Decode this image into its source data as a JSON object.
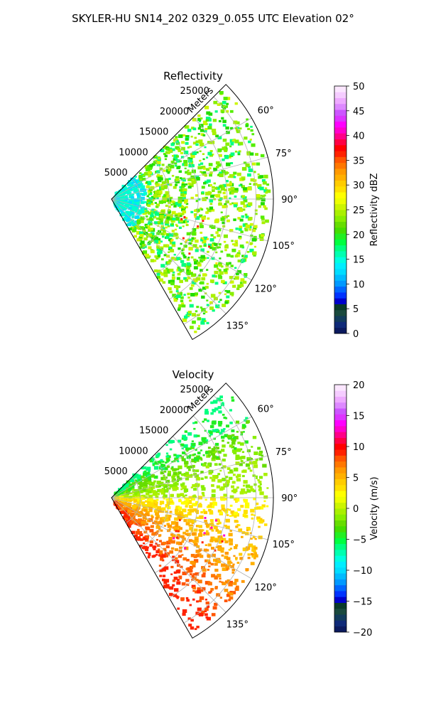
{
  "figure": {
    "title": "SKYLER-HU  SN14_202  0329_0.055 UTC Elevation 02°"
  },
  "chart_data": [
    {
      "type": "heatmap",
      "projection": "polar-sector",
      "title": "Reflectivity",
      "range_axis_label": "Meters",
      "range_ticks": [
        5000,
        10000,
        15000,
        20000,
        25000
      ],
      "range_tick_labels": [
        "5000",
        "10000",
        "15000",
        "20000",
        "25000"
      ],
      "range_lim": [
        0,
        28000
      ],
      "azimuth_ticks": [
        60,
        75,
        90,
        105,
        120,
        135
      ],
      "azimuth_tick_labels": [
        "60°",
        "75°",
        "90°",
        "105°",
        "120°",
        "135°"
      ],
      "azimuth_lim": [
        45,
        150
      ],
      "grid": true,
      "colorbar": {
        "label": "Reflectivity dBZ",
        "range": [
          0,
          50
        ],
        "ticks": [
          0,
          5,
          10,
          15,
          20,
          25,
          30,
          35,
          40,
          45,
          50
        ],
        "tick_labels": [
          "0",
          "5",
          "10",
          "15",
          "20",
          "25",
          "30",
          "35",
          "40",
          "45",
          "50"
        ],
        "levels": 40,
        "colors": [
          "#0b1a5e",
          "#0f2a78",
          "#123c5c",
          "#1a4a3e",
          "#0a3a2a",
          "#0000cc",
          "#0033ff",
          "#0066ff",
          "#0099ff",
          "#00bbff",
          "#00ddff",
          "#00eeff",
          "#00ffe0",
          "#00ffb0",
          "#00ff80",
          "#00ff40",
          "#22ee22",
          "#44dd00",
          "#66dd00",
          "#88ee00",
          "#aaf000",
          "#ccf500",
          "#eeff00",
          "#ffff00",
          "#ffe000",
          "#ffcc00",
          "#ffb000",
          "#ff9900",
          "#ff7700",
          "#ff5500",
          "#ff2200",
          "#ff0000",
          "#ff0044",
          "#ff0088",
          "#ff00cc",
          "#ff00ff",
          "#dd33ff",
          "#cc55ff",
          "#dd88ff",
          "#eeaaff",
          "#f5ccff",
          "#fbe6ff"
        ]
      },
      "field_colors": [
        "#00ffcc",
        "#00ddff",
        "#22dd00",
        "#55ee00",
        "#88ee00",
        "#aaf000",
        "#ccf500",
        "#00ff80"
      ],
      "cell_colors": [
        "#ff2200",
        "#ffe000"
      ]
    },
    {
      "type": "heatmap",
      "projection": "polar-sector",
      "title": "Velocity",
      "range_axis_label": "Meters",
      "range_ticks": [
        5000,
        10000,
        15000,
        20000,
        25000
      ],
      "range_tick_labels": [
        "5000",
        "10000",
        "15000",
        "20000",
        "25000"
      ],
      "range_lim": [
        0,
        28000
      ],
      "azimuth_ticks": [
        60,
        75,
        90,
        105,
        120,
        135
      ],
      "azimuth_tick_labels": [
        "60°",
        "75°",
        "90°",
        "105°",
        "120°",
        "135°"
      ],
      "azimuth_lim": [
        45,
        150
      ],
      "grid": true,
      "colorbar": {
        "label": "Velocity (m/s)",
        "range": [
          -20,
          20
        ],
        "ticks": [
          -20,
          -15,
          -10,
          -5,
          0,
          5,
          10,
          15,
          20
        ],
        "tick_labels": [
          "−20",
          "−15",
          "−10",
          "−5",
          "0",
          "5",
          "10",
          "15",
          "20"
        ],
        "levels": 40,
        "colors": [
          "#0b1a5e",
          "#0f2a78",
          "#123c5c",
          "#1a4a3e",
          "#0a3a2a",
          "#0000cc",
          "#0033ff",
          "#0066ff",
          "#0099ff",
          "#00bbff",
          "#00ddff",
          "#00eeff",
          "#00ffe0",
          "#00ffb0",
          "#00ff80",
          "#00ff40",
          "#22ee22",
          "#44dd00",
          "#66dd00",
          "#88ee00",
          "#aaf000",
          "#ccf500",
          "#eeff00",
          "#ffff00",
          "#ffe000",
          "#ffcc00",
          "#ffb000",
          "#ff9900",
          "#ff7700",
          "#ff5500",
          "#ff2200",
          "#ff0000",
          "#ff0044",
          "#ff0088",
          "#ff00cc",
          "#ff00ff",
          "#dd33ff",
          "#cc55ff",
          "#dd88ff",
          "#eeaaff",
          "#f5ccff",
          "#fbe6ff"
        ]
      },
      "field_colors_north": [
        "#00ff80",
        "#22ee22",
        "#66dd00",
        "#88ee00",
        "#aaf000"
      ],
      "field_colors_south": [
        "#ffff00",
        "#ffe000",
        "#ffcc00",
        "#ffb000",
        "#ff9900",
        "#ff7700",
        "#ff5500",
        "#ff2200"
      ],
      "cell_colors": [
        "#ff00cc",
        "#ff2200"
      ]
    }
  ]
}
